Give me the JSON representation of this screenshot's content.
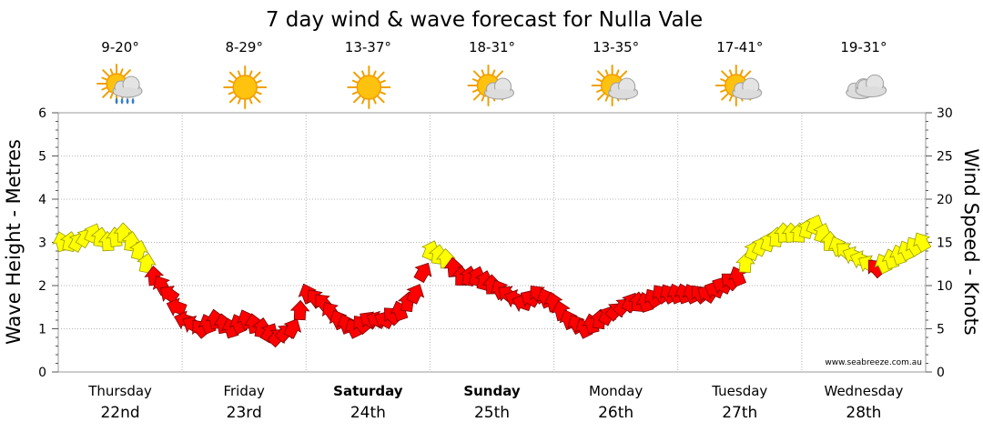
{
  "chart_data": {
    "type": "line",
    "title": "7 day wind & wave forecast for Nulla Vale",
    "ylabel_left": "Wave Height - Metres",
    "ylabel_right": "Wind Speed - Knots",
    "ylim_left": [
      0,
      6
    ],
    "ylim_right": [
      0,
      30
    ],
    "yticks_left": [
      "0",
      "1",
      "2",
      "3",
      "4",
      "5",
      "6"
    ],
    "yticks_right": [
      "0",
      "5",
      "10",
      "15",
      "20",
      "25",
      "30"
    ],
    "grid": true,
    "watermark": "www.seabreeze.com.au",
    "days": [
      {
        "name": "Thursday",
        "date": "22nd",
        "temp": "9-20°",
        "icon": "sun-cloud-rain-icon",
        "bold": false
      },
      {
        "name": "Friday",
        "date": "23rd",
        "temp": "8-29°",
        "icon": "sun-icon",
        "bold": false
      },
      {
        "name": "Saturday",
        "date": "24th",
        "temp": "13-37°",
        "icon": "sun-icon",
        "bold": true
      },
      {
        "name": "Sunday",
        "date": "25th",
        "temp": "18-31°",
        "icon": "sun-cloud-icon",
        "bold": true
      },
      {
        "name": "Monday",
        "date": "26th",
        "temp": "13-35°",
        "icon": "sun-cloud-icon",
        "bold": false
      },
      {
        "name": "Tuesday",
        "date": "27th",
        "temp": "17-41°",
        "icon": "sun-cloud-icon",
        "bold": false
      },
      {
        "name": "Wednesday",
        "date": "28th",
        "temp": "19-31°",
        "icon": "cloud-icon",
        "bold": false
      }
    ],
    "series": [
      {
        "name": "Wind speed (knots)",
        "time_hours_from_thursday_start": [
          0,
          3,
          6,
          9,
          12,
          15,
          18,
          21,
          24,
          27,
          30,
          33,
          36,
          39,
          42,
          45,
          48,
          51,
          54,
          57,
          60,
          63,
          66,
          69,
          72,
          75,
          78,
          81,
          84,
          87,
          90,
          93,
          96,
          99,
          102,
          105,
          108,
          111,
          114,
          117,
          120,
          123,
          126,
          129,
          132,
          135,
          138,
          141,
          144,
          147,
          150,
          153,
          156,
          159,
          162,
          165,
          168
        ],
        "values": [
          15,
          15,
          16,
          15,
          16,
          14,
          11,
          9,
          6,
          5,
          6,
          5,
          6,
          5,
          4,
          5,
          9,
          8,
          6,
          5,
          6,
          6,
          7,
          9,
          14,
          13,
          11,
          11,
          10,
          9,
          8,
          9,
          8,
          6,
          5,
          6,
          7,
          8,
          8,
          9,
          9,
          9,
          9,
          10,
          11,
          14,
          15,
          16,
          16,
          17,
          15,
          14,
          13,
          12,
          13,
          14,
          15
        ]
      }
    ],
    "legend_colors": {
      "low": "#ff0000",
      "high": "#ffff00"
    }
  }
}
